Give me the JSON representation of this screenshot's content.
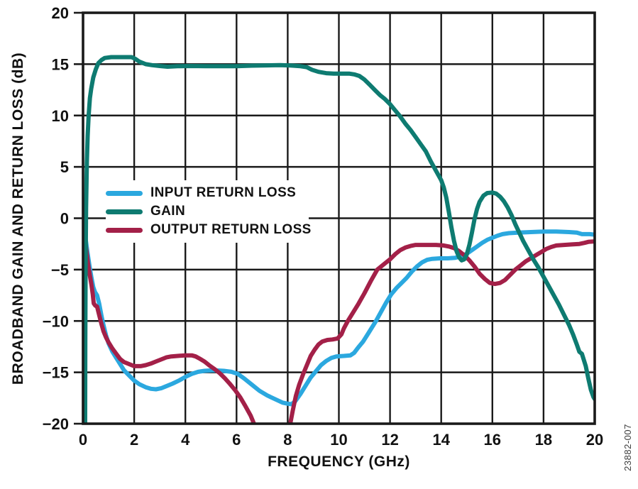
{
  "figure": {
    "watermark": "23882-007"
  },
  "chart_data": {
    "type": "line",
    "title": "",
    "xlabel": "FREQUENCY (GHz)",
    "ylabel": "BROADBAND GAIN AND RETURN LOSS (dB)",
    "xlim": [
      0,
      20
    ],
    "ylim": [
      -20,
      20
    ],
    "grid": "on",
    "legend_position": "inside-upper-left",
    "colors": {
      "axis": "#1a1a1a",
      "background": "#ffffff"
    },
    "x_ticks": {
      "values": [
        0,
        2,
        4,
        6,
        8,
        10,
        12,
        14,
        16,
        18,
        20
      ],
      "labels": [
        "0",
        "2",
        "4",
        "6",
        "8",
        "10",
        "12",
        "14",
        "16",
        "18",
        "20"
      ]
    },
    "y_ticks": {
      "values": [
        20,
        15,
        10,
        5,
        0,
        -5,
        -10,
        -15,
        -20
      ],
      "labels": [
        "20",
        "15",
        "10",
        "5",
        "0",
        "−5",
        "−10",
        "−15",
        "−20"
      ]
    },
    "series": [
      {
        "name": "INPUT RETURN LOSS",
        "color": "#2BA8DF",
        "points": [
          [
            0,
            0
          ],
          [
            0.08,
            -1.6
          ],
          [
            0.16,
            -3.1
          ],
          [
            0.25,
            -4.6
          ],
          [
            0.33,
            -5.8
          ],
          [
            0.4,
            -6.7
          ],
          [
            0.47,
            -7.2
          ],
          [
            0.55,
            -7.5
          ],
          [
            0.63,
            -8.3
          ],
          [
            0.72,
            -9.5
          ],
          [
            0.8,
            -10.4
          ],
          [
            0.9,
            -11.4
          ],
          [
            1.0,
            -12.2
          ],
          [
            1.15,
            -13.0
          ],
          [
            1.3,
            -13.6
          ],
          [
            1.45,
            -14.2
          ],
          [
            1.6,
            -14.8
          ],
          [
            1.8,
            -15.3
          ],
          [
            2.0,
            -15.8
          ],
          [
            2.2,
            -16.15
          ],
          [
            2.45,
            -16.45
          ],
          [
            2.65,
            -16.6
          ],
          [
            2.85,
            -16.65
          ],
          [
            3.05,
            -16.55
          ],
          [
            3.25,
            -16.35
          ],
          [
            3.5,
            -16.1
          ],
          [
            3.75,
            -15.8
          ],
          [
            4.0,
            -15.45
          ],
          [
            4.25,
            -15.15
          ],
          [
            4.5,
            -14.95
          ],
          [
            4.75,
            -14.85
          ],
          [
            5.1,
            -14.8
          ],
          [
            5.5,
            -14.85
          ],
          [
            5.8,
            -14.95
          ],
          [
            6.05,
            -15.15
          ],
          [
            6.3,
            -15.6
          ],
          [
            6.6,
            -16.2
          ],
          [
            6.9,
            -16.8
          ],
          [
            7.2,
            -17.25
          ],
          [
            7.5,
            -17.6
          ],
          [
            7.8,
            -17.95
          ],
          [
            8.0,
            -18.05
          ],
          [
            8.15,
            -18.1
          ],
          [
            8.3,
            -17.8
          ],
          [
            8.5,
            -17.1
          ],
          [
            8.7,
            -16.3
          ],
          [
            8.9,
            -15.5
          ],
          [
            9.1,
            -14.9
          ],
          [
            9.3,
            -14.3
          ],
          [
            9.5,
            -13.9
          ],
          [
            9.7,
            -13.6
          ],
          [
            9.9,
            -13.45
          ],
          [
            10.2,
            -13.4
          ],
          [
            10.45,
            -13.35
          ],
          [
            10.6,
            -13.1
          ],
          [
            10.75,
            -12.6
          ],
          [
            10.95,
            -12.0
          ],
          [
            11.15,
            -11.2
          ],
          [
            11.45,
            -10.0
          ],
          [
            11.65,
            -9.1
          ],
          [
            11.85,
            -8.2
          ],
          [
            12.05,
            -7.4
          ],
          [
            12.25,
            -6.8
          ],
          [
            12.45,
            -6.3
          ],
          [
            12.65,
            -5.8
          ],
          [
            12.85,
            -5.2
          ],
          [
            13.05,
            -4.7
          ],
          [
            13.25,
            -4.3
          ],
          [
            13.45,
            -4.05
          ],
          [
            13.65,
            -3.95
          ],
          [
            13.95,
            -3.9
          ],
          [
            14.25,
            -3.9
          ],
          [
            14.55,
            -3.85
          ],
          [
            14.8,
            -3.7
          ],
          [
            15.0,
            -3.45
          ],
          [
            15.2,
            -3.1
          ],
          [
            15.4,
            -2.75
          ],
          [
            15.6,
            -2.4
          ],
          [
            15.8,
            -2.1
          ],
          [
            16.0,
            -1.9
          ],
          [
            16.2,
            -1.7
          ],
          [
            16.4,
            -1.55
          ],
          [
            16.65,
            -1.45
          ],
          [
            17.0,
            -1.4
          ],
          [
            17.5,
            -1.35
          ],
          [
            18.0,
            -1.3
          ],
          [
            18.5,
            -1.3
          ],
          [
            19.0,
            -1.35
          ],
          [
            19.3,
            -1.4
          ],
          [
            19.5,
            -1.55
          ],
          [
            19.8,
            -1.55
          ],
          [
            20.0,
            -1.6
          ]
        ]
      },
      {
        "name": "GAIN",
        "color": "#0E7B71",
        "points": [
          [
            0.08,
            -22
          ],
          [
            0.09,
            -12
          ],
          [
            0.1,
            -5
          ],
          [
            0.12,
            1
          ],
          [
            0.15,
            5.5
          ],
          [
            0.18,
            8
          ],
          [
            0.22,
            10
          ],
          [
            0.27,
            11.7
          ],
          [
            0.32,
            12.6
          ],
          [
            0.4,
            13.7
          ],
          [
            0.5,
            14.5
          ],
          [
            0.6,
            15.1
          ],
          [
            0.72,
            15.4
          ],
          [
            0.85,
            15.6
          ],
          [
            1.1,
            15.68
          ],
          [
            1.5,
            15.68
          ],
          [
            1.9,
            15.68
          ],
          [
            2.05,
            15.5
          ],
          [
            2.2,
            15.25
          ],
          [
            2.45,
            15.0
          ],
          [
            2.7,
            14.9
          ],
          [
            3.0,
            14.82
          ],
          [
            3.3,
            14.75
          ],
          [
            3.7,
            14.8
          ],
          [
            4.2,
            14.82
          ],
          [
            4.8,
            14.8
          ],
          [
            5.4,
            14.8
          ],
          [
            6.0,
            14.8
          ],
          [
            6.6,
            14.85
          ],
          [
            7.2,
            14.88
          ],
          [
            7.7,
            14.9
          ],
          [
            8.1,
            14.87
          ],
          [
            8.5,
            14.8
          ],
          [
            8.75,
            14.7
          ],
          [
            8.95,
            14.45
          ],
          [
            9.2,
            14.25
          ],
          [
            9.5,
            14.12
          ],
          [
            9.8,
            14.08
          ],
          [
            10.1,
            14.08
          ],
          [
            10.4,
            14.08
          ],
          [
            10.6,
            14.0
          ],
          [
            10.8,
            13.85
          ],
          [
            11.0,
            13.5
          ],
          [
            11.2,
            13.0
          ],
          [
            11.4,
            12.5
          ],
          [
            11.6,
            12.0
          ],
          [
            11.8,
            11.6
          ],
          [
            12.0,
            11.1
          ],
          [
            12.2,
            10.5
          ],
          [
            12.4,
            9.9
          ],
          [
            12.6,
            9.2
          ],
          [
            12.8,
            8.6
          ],
          [
            13.0,
            7.9
          ],
          [
            13.2,
            7.2
          ],
          [
            13.4,
            6.5
          ],
          [
            13.6,
            5.5
          ],
          [
            13.8,
            4.6
          ],
          [
            14.0,
            3.7
          ],
          [
            14.1,
            3.0
          ],
          [
            14.2,
            2.0
          ],
          [
            14.3,
            0.6
          ],
          [
            14.4,
            -0.9
          ],
          [
            14.5,
            -2.2
          ],
          [
            14.6,
            -3.2
          ],
          [
            14.7,
            -3.8
          ],
          [
            14.8,
            -4.1
          ],
          [
            14.9,
            -4.0
          ],
          [
            15.0,
            -3.5
          ],
          [
            15.1,
            -2.6
          ],
          [
            15.2,
            -1.4
          ],
          [
            15.3,
            -0.1
          ],
          [
            15.4,
            0.9
          ],
          [
            15.5,
            1.6
          ],
          [
            15.65,
            2.2
          ],
          [
            15.8,
            2.45
          ],
          [
            16.0,
            2.5
          ],
          [
            16.15,
            2.4
          ],
          [
            16.3,
            2.1
          ],
          [
            16.45,
            1.65
          ],
          [
            16.6,
            1.05
          ],
          [
            16.75,
            0.3
          ],
          [
            16.9,
            -0.6
          ],
          [
            17.05,
            -1.4
          ],
          [
            17.2,
            -2.2
          ],
          [
            17.4,
            -3.1
          ],
          [
            17.6,
            -4.0
          ],
          [
            17.8,
            -4.8
          ],
          [
            18.0,
            -5.7
          ],
          [
            18.2,
            -6.6
          ],
          [
            18.4,
            -7.5
          ],
          [
            18.6,
            -8.4
          ],
          [
            18.8,
            -9.4
          ],
          [
            19.0,
            -10.4
          ],
          [
            19.15,
            -11.3
          ],
          [
            19.3,
            -12.3
          ],
          [
            19.4,
            -13.0
          ],
          [
            19.5,
            -13.2
          ],
          [
            19.65,
            -14.4
          ],
          [
            19.75,
            -15.6
          ],
          [
            19.85,
            -16.7
          ],
          [
            19.95,
            -17.4
          ],
          [
            20.0,
            -17.6
          ]
        ]
      },
      {
        "name": "OUTPUT RETURN LOSS",
        "color": "#A32048",
        "points": [
          [
            0,
            0
          ],
          [
            0.07,
            -1.8
          ],
          [
            0.14,
            -3.3
          ],
          [
            0.2,
            -4.5
          ],
          [
            0.27,
            -5.6
          ],
          [
            0.33,
            -6.5
          ],
          [
            0.38,
            -7.4
          ],
          [
            0.42,
            -8.3
          ],
          [
            0.48,
            -8.5
          ],
          [
            0.55,
            -8.6
          ],
          [
            0.63,
            -9.4
          ],
          [
            0.72,
            -10.3
          ],
          [
            0.8,
            -11.0
          ],
          [
            0.9,
            -11.6
          ],
          [
            1.0,
            -12.1
          ],
          [
            1.15,
            -12.7
          ],
          [
            1.3,
            -13.2
          ],
          [
            1.45,
            -13.7
          ],
          [
            1.6,
            -14.0
          ],
          [
            1.8,
            -14.2
          ],
          [
            2.0,
            -14.4
          ],
          [
            2.25,
            -14.4
          ],
          [
            2.45,
            -14.3
          ],
          [
            2.65,
            -14.15
          ],
          [
            2.85,
            -13.95
          ],
          [
            3.05,
            -13.75
          ],
          [
            3.25,
            -13.55
          ],
          [
            3.45,
            -13.45
          ],
          [
            3.7,
            -13.4
          ],
          [
            4.0,
            -13.35
          ],
          [
            4.25,
            -13.35
          ],
          [
            4.4,
            -13.45
          ],
          [
            4.55,
            -13.65
          ],
          [
            4.75,
            -13.95
          ],
          [
            4.95,
            -14.35
          ],
          [
            5.15,
            -14.7
          ],
          [
            5.35,
            -15.1
          ],
          [
            5.55,
            -15.6
          ],
          [
            5.75,
            -16.15
          ],
          [
            5.95,
            -16.75
          ],
          [
            6.15,
            -17.45
          ],
          [
            6.35,
            -18.3
          ],
          [
            6.55,
            -19.2
          ],
          [
            6.7,
            -20.1
          ],
          [
            6.95,
            -21.6
          ],
          [
            7.25,
            -22.6
          ],
          [
            7.6,
            -22.6
          ],
          [
            7.9,
            -21.3
          ],
          [
            8.1,
            -20.0
          ],
          [
            8.2,
            -18.7
          ],
          [
            8.32,
            -17.3
          ],
          [
            8.45,
            -16.2
          ],
          [
            8.6,
            -15.2
          ],
          [
            8.75,
            -14.3
          ],
          [
            8.9,
            -13.4
          ],
          [
            9.05,
            -12.8
          ],
          [
            9.2,
            -12.3
          ],
          [
            9.35,
            -12.0
          ],
          [
            9.55,
            -11.85
          ],
          [
            9.75,
            -11.8
          ],
          [
            9.95,
            -11.7
          ],
          [
            10.1,
            -11.3
          ],
          [
            10.2,
            -10.7
          ],
          [
            10.35,
            -10.0
          ],
          [
            10.55,
            -9.2
          ],
          [
            10.75,
            -8.4
          ],
          [
            11.0,
            -7.3
          ],
          [
            11.25,
            -6.1
          ],
          [
            11.5,
            -5.0
          ],
          [
            11.75,
            -4.5
          ],
          [
            12.0,
            -4.0
          ],
          [
            12.2,
            -3.5
          ],
          [
            12.4,
            -3.1
          ],
          [
            12.6,
            -2.85
          ],
          [
            12.8,
            -2.7
          ],
          [
            13.0,
            -2.6
          ],
          [
            13.4,
            -2.6
          ],
          [
            13.8,
            -2.6
          ],
          [
            14.1,
            -2.65
          ],
          [
            14.3,
            -2.75
          ],
          [
            14.5,
            -2.9
          ],
          [
            14.7,
            -3.2
          ],
          [
            14.9,
            -3.6
          ],
          [
            15.1,
            -4.1
          ],
          [
            15.3,
            -4.7
          ],
          [
            15.5,
            -5.4
          ],
          [
            15.7,
            -5.9
          ],
          [
            15.9,
            -6.3
          ],
          [
            16.1,
            -6.4
          ],
          [
            16.3,
            -6.3
          ],
          [
            16.5,
            -6.0
          ],
          [
            16.7,
            -5.5
          ],
          [
            16.9,
            -5.0
          ],
          [
            17.1,
            -4.6
          ],
          [
            17.3,
            -4.2
          ],
          [
            17.5,
            -3.9
          ],
          [
            17.7,
            -3.6
          ],
          [
            17.9,
            -3.3
          ],
          [
            18.1,
            -3.0
          ],
          [
            18.3,
            -2.8
          ],
          [
            18.5,
            -2.65
          ],
          [
            18.8,
            -2.6
          ],
          [
            19.1,
            -2.55
          ],
          [
            19.4,
            -2.5
          ],
          [
            19.6,
            -2.4
          ],
          [
            19.75,
            -2.3
          ],
          [
            20.0,
            -2.25
          ]
        ]
      }
    ]
  }
}
